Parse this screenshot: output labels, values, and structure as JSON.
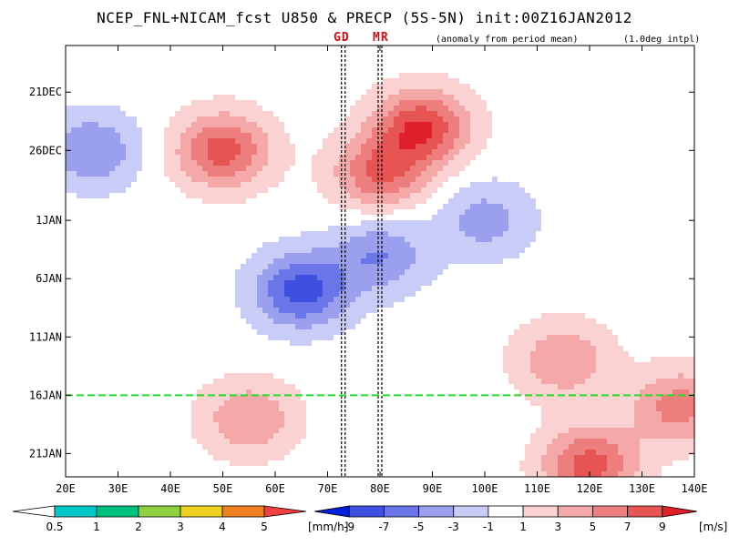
{
  "chart_data": {
    "type": "heatmap",
    "title": "NCEP_FNL+NICAM_fcst U850 & PRECP (5S-5N) init:00Z16JAN2012",
    "subtitle_left": "(anomaly from period mean)",
    "subtitle_right": "(1.0deg intpl)",
    "markers": [
      {
        "label": "GD",
        "lon": 73,
        "color": "#d01010"
      },
      {
        "label": "MR",
        "lon": 80,
        "color": "#d01010"
      }
    ],
    "init_line": {
      "time": "16JAN",
      "color": "#22dd22"
    },
    "x_axis": {
      "min": 20,
      "max": 140,
      "ticks": [
        "20E",
        "30E",
        "40E",
        "50E",
        "60E",
        "70E",
        "80E",
        "90E",
        "100E",
        "110E",
        "120E",
        "130E",
        "140E"
      ],
      "values": [
        20,
        30,
        40,
        50,
        60,
        70,
        80,
        90,
        100,
        110,
        120,
        130,
        140
      ]
    },
    "y_axis": {
      "ticks": [
        "21DEC",
        "26DEC",
        "1JAN",
        "6JAN",
        "11JAN",
        "16JAN",
        "21JAN"
      ],
      "days": [
        4,
        9,
        15,
        20,
        25,
        30,
        35
      ],
      "min_day": 0,
      "max_day": 37
    },
    "precip_colorbar": {
      "unit": "[mm/h]",
      "labels": [
        "0.5",
        "1",
        "2",
        "3",
        "4",
        "5"
      ],
      "colors": [
        "#ffffff",
        "#00c8c8",
        "#00c080",
        "#90d040",
        "#f0d020",
        "#f08020",
        "#f04040"
      ]
    },
    "wind_colorbar": {
      "unit": "[m/s]",
      "labels": [
        "-9",
        "-7",
        "-5",
        "-3",
        "-1",
        "1",
        "3",
        "5",
        "7",
        "9"
      ],
      "colors": [
        "#0020e0",
        "#3f4fe0",
        "#6a76e8",
        "#9aa0ee",
        "#c8ccf6",
        "#ffffff",
        "#fad2d2",
        "#f4a8a8",
        "#ee7e7e",
        "#e65454",
        "#e0202a"
      ]
    },
    "anomaly_features": [
      {
        "lon": 50,
        "day": 9,
        "value": 8
      },
      {
        "lon": 88,
        "day": 7,
        "value": 9
      },
      {
        "lon": 80,
        "day": 11,
        "value": 7
      },
      {
        "lon": 65,
        "day": 21,
        "value": -8
      },
      {
        "lon": 80,
        "day": 18,
        "value": -5
      },
      {
        "lon": 100,
        "day": 15,
        "value": -4
      },
      {
        "lon": 25,
        "day": 9,
        "value": -5
      },
      {
        "lon": 120,
        "day": 36,
        "value": 8
      },
      {
        "lon": 115,
        "day": 27,
        "value": 5
      },
      {
        "lon": 137,
        "day": 31,
        "value": 6
      },
      {
        "lon": 55,
        "day": 32,
        "value": 5
      }
    ]
  }
}
